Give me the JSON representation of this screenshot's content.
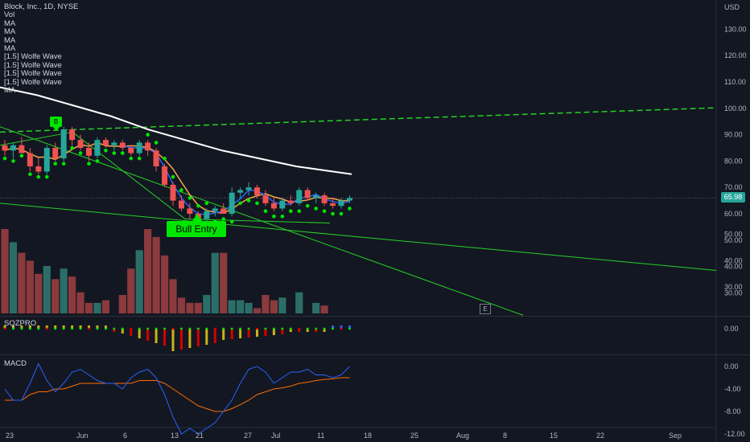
{
  "legend": {
    "symbol": "Block, Inc., 1D, NYSE",
    "items": [
      "Vol",
      "MA",
      "MA",
      "MA",
      "MA",
      "[1.5] Wolfe Wave",
      "[1.5] Wolfe Wave",
      "[1.5] Wolfe Wave",
      "[1.5] Wolfe Wave",
      "MA"
    ]
  },
  "last_price": "65.98",
  "labels": {
    "bull_entry": "Bull Entry",
    "badge": "B",
    "event": "E",
    "sqz": "SQZPRO",
    "macd": "MACD"
  },
  "colors": {
    "up": "#26a69a",
    "down": "#ef5350",
    "vol_up": "#2b6e68",
    "vol_down": "#8b3a3d",
    "ma_white": "#ffffff",
    "ma_orange": "#f7a54a",
    "ma_blue": "#2962ff",
    "wolfe": "#26d126",
    "dots": "#00e600",
    "macd": "#2962ff",
    "signal": "#ff6d00"
  },
  "chart_data": {
    "type": "candlestick",
    "price_axis": {
      "label": "USD",
      "ticks": [
        130,
        120,
        110,
        100,
        90,
        80,
        70,
        60,
        50,
        40,
        30
      ],
      "range": [
        20,
        138
      ]
    },
    "x_ticks": [
      "23",
      "Jun",
      "6",
      "13",
      "21",
      "27",
      "Jul",
      "11",
      "18",
      "25",
      "Aug",
      "8",
      "15",
      "22",
      "Sep"
    ],
    "candles": [
      [
        86,
        88,
        82,
        84
      ],
      [
        84,
        87,
        81,
        86
      ],
      [
        86,
        89,
        83,
        83
      ],
      [
        83,
        85,
        76,
        78
      ],
      [
        78,
        81,
        75,
        76
      ],
      [
        76,
        86,
        75,
        85
      ],
      [
        85,
        87,
        80,
        81
      ],
      [
        81,
        93,
        80,
        92
      ],
      [
        92,
        93,
        86,
        88
      ],
      [
        88,
        90,
        84,
        85
      ],
      [
        85,
        87,
        80,
        82
      ],
      [
        82,
        89,
        81,
        88
      ],
      [
        88,
        89,
        85,
        86
      ],
      [
        86,
        88,
        84,
        87
      ],
      [
        87,
        88,
        84,
        85
      ],
      [
        85,
        86,
        82,
        83
      ],
      [
        83,
        88,
        82,
        87
      ],
      [
        87,
        88,
        82,
        84
      ],
      [
        84,
        85,
        76,
        78
      ],
      [
        78,
        79,
        70,
        71
      ],
      [
        71,
        72,
        63,
        65
      ],
      [
        65,
        67,
        61,
        62
      ],
      [
        62,
        64,
        58,
        60
      ],
      [
        60,
        61,
        57,
        58
      ],
      [
        58,
        62,
        57,
        61
      ],
      [
        61,
        63,
        59,
        62
      ],
      [
        62,
        64,
        60,
        60
      ],
      [
        60,
        70,
        59,
        68
      ],
      [
        68,
        70,
        66,
        69
      ],
      [
        69,
        72,
        67,
        70
      ],
      [
        70,
        71,
        66,
        67
      ],
      [
        67,
        69,
        63,
        64
      ],
      [
        64,
        66,
        61,
        62
      ],
      [
        62,
        66,
        61,
        65
      ],
      [
        65,
        67,
        63,
        64
      ],
      [
        64,
        70,
        63,
        69
      ],
      [
        69,
        70,
        65,
        66
      ],
      [
        66,
        68,
        64,
        67
      ],
      [
        67,
        68,
        63,
        64
      ],
      [
        64,
        66,
        62,
        63
      ],
      [
        63,
        66,
        62,
        65
      ],
      [
        65,
        67,
        64,
        66
      ]
    ],
    "volume": [
      52,
      47,
      43,
      40,
      35,
      38,
      33,
      37,
      34,
      28,
      24,
      24,
      25,
      20,
      27,
      37,
      44,
      52,
      49,
      42,
      33,
      26,
      24,
      24,
      27,
      43,
      43,
      25,
      25,
      24,
      22,
      27,
      25,
      26,
      20,
      28,
      20,
      24,
      23,
      20,
      18,
      20
    ],
    "volume_axis_ticks": [
      50,
      40,
      30
    ],
    "ma_white": [
      [
        0,
        108
      ],
      [
        10,
        105
      ],
      [
        20,
        101
      ],
      [
        30,
        97
      ],
      [
        40,
        92
      ],
      [
        50,
        88
      ],
      [
        60,
        84
      ],
      [
        70,
        81
      ],
      [
        80,
        78
      ],
      [
        90,
        76
      ],
      [
        95,
        75
      ]
    ],
    "sqzpro": {
      "axis_ticks": [
        "0.00"
      ]
    },
    "macd": {
      "axis_ticks": [
        0,
        -4,
        -8,
        -12
      ],
      "macd_line": [
        -4,
        -6,
        -6,
        -3,
        0.5,
        -2.5,
        -4.5,
        -3,
        -1,
        -0.5,
        -1.5,
        -2.5,
        -3,
        -3,
        -4,
        -2,
        -1,
        -0.5,
        -2,
        -5,
        -9,
        -12,
        -11,
        -12,
        -11,
        -10,
        -8,
        -6,
        -3,
        -0.5,
        0,
        -1,
        -3,
        -2,
        -1,
        -1,
        -0.5,
        -1.5,
        -1.5,
        -2,
        -1.5,
        0
      ],
      "signal_line": [
        -6,
        -6,
        -6,
        -5,
        -4.5,
        -4.5,
        -4,
        -4,
        -3.5,
        -3,
        -3,
        -3,
        -3,
        -3,
        -3,
        -3,
        -2.5,
        -2.5,
        -2.5,
        -3,
        -4,
        -5,
        -6,
        -7,
        -7.5,
        -8,
        -8,
        -7.5,
        -6.8,
        -6,
        -5,
        -4.5,
        -4,
        -3.8,
        -3.5,
        -3,
        -2.8,
        -2.5,
        -2.3,
        -2.2,
        -2,
        -2
      ]
    }
  }
}
